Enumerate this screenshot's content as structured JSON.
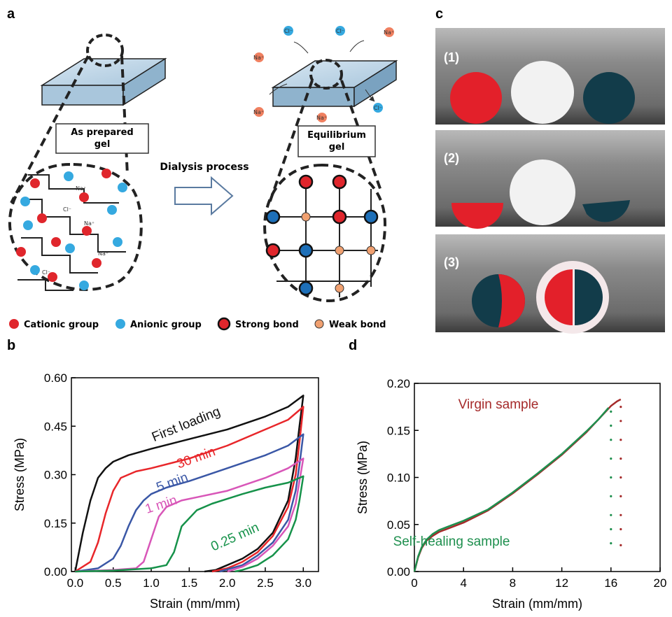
{
  "panel_a": {
    "label": "a",
    "gel_before": [
      "As prepared",
      "gel"
    ],
    "gel_after": [
      "Equilibrium",
      "gel"
    ],
    "process": "Dialysis process",
    "ions": [
      "Na⁺",
      "Cl⁻"
    ],
    "legend": [
      "Cationic group",
      "Anionic group",
      "Strong bond",
      "Weak bond"
    ]
  },
  "panel_c": {
    "label": "c",
    "photos": [
      "(1)",
      "(2)",
      "(3)"
    ]
  },
  "chart_data": [
    {
      "type": "line",
      "label": "b",
      "x_label": "Strain (mm/mm)",
      "y_label": "Stress (MPa)",
      "xlim": [
        -0.05,
        3.2
      ],
      "ylim": [
        0,
        0.6
      ],
      "xticks": [
        {
          "value": 0,
          "label": "0.0"
        },
        {
          "value": 0.5,
          "label": "0.5"
        },
        {
          "value": 1,
          "label": "1.0"
        },
        {
          "value": 1.5,
          "label": "1.5"
        },
        {
          "value": 2,
          "label": "2.0"
        },
        {
          "value": 2.5,
          "label": "2.5"
        },
        {
          "value": 3,
          "label": "3.0"
        }
      ],
      "yticks": [
        {
          "value": 0,
          "label": "0.00"
        },
        {
          "value": 0.15,
          "label": "0.15"
        },
        {
          "value": 0.3,
          "label": "0.30"
        },
        {
          "value": 0.45,
          "label": "0.45"
        },
        {
          "value": 0.6,
          "label": "0.60"
        }
      ],
      "series": [
        {
          "name": "First loading",
          "color": "#111111",
          "x": [
            0,
            0.1,
            0.2,
            0.3,
            0.4,
            0.5,
            0.7,
            1.0,
            1.5,
            2.0,
            2.5,
            2.8,
            3.0,
            2.95,
            2.9,
            2.8,
            2.6,
            2.4,
            2.2,
            2.0,
            1.85,
            1.7
          ],
          "values": [
            0,
            0.12,
            0.22,
            0.29,
            0.32,
            0.34,
            0.36,
            0.38,
            0.41,
            0.44,
            0.48,
            0.51,
            0.545,
            0.45,
            0.35,
            0.22,
            0.12,
            0.07,
            0.04,
            0.02,
            0.005,
            0
          ]
        },
        {
          "name": "30 min",
          "color": "#e8262a",
          "x": [
            0,
            0.2,
            0.3,
            0.4,
            0.5,
            0.6,
            0.8,
            1.0,
            1.5,
            2.0,
            2.5,
            2.8,
            3.0,
            2.95,
            2.9,
            2.8,
            2.6,
            2.4,
            2.2,
            2.0,
            1.8
          ],
          "values": [
            0,
            0.03,
            0.09,
            0.18,
            0.25,
            0.29,
            0.31,
            0.32,
            0.35,
            0.39,
            0.44,
            0.47,
            0.51,
            0.4,
            0.3,
            0.2,
            0.11,
            0.06,
            0.03,
            0.01,
            0
          ]
        },
        {
          "name": "5 min",
          "color": "#3a57a6",
          "x": [
            0,
            0.3,
            0.5,
            0.6,
            0.7,
            0.8,
            0.9,
            1.0,
            1.2,
            1.5,
            2.0,
            2.5,
            2.8,
            3.0,
            2.95,
            2.9,
            2.8,
            2.6,
            2.4,
            2.2,
            1.9
          ],
          "values": [
            0,
            0.01,
            0.04,
            0.08,
            0.14,
            0.19,
            0.22,
            0.24,
            0.26,
            0.28,
            0.32,
            0.36,
            0.39,
            0.425,
            0.33,
            0.25,
            0.16,
            0.09,
            0.05,
            0.02,
            0
          ]
        },
        {
          "name": "1 min",
          "color": "#d856b8",
          "x": [
            0,
            0.5,
            0.8,
            0.9,
            1.0,
            1.1,
            1.2,
            1.4,
            1.6,
            2.0,
            2.5,
            2.8,
            3.0,
            2.95,
            2.9,
            2.8,
            2.6,
            2.4,
            2.2,
            2.0
          ],
          "values": [
            0,
            0.005,
            0.01,
            0.03,
            0.1,
            0.17,
            0.2,
            0.22,
            0.23,
            0.25,
            0.29,
            0.32,
            0.35,
            0.28,
            0.21,
            0.14,
            0.08,
            0.04,
            0.015,
            0
          ]
        },
        {
          "name": "0.25 min",
          "color": "#16924a",
          "x": [
            0,
            0.5,
            1.0,
            1.2,
            1.3,
            1.4,
            1.6,
            1.8,
            2.0,
            2.2,
            2.5,
            2.8,
            3.0,
            2.95,
            2.9,
            2.8,
            2.6,
            2.4,
            2.2,
            2.1
          ],
          "values": [
            0,
            0.003,
            0.01,
            0.02,
            0.06,
            0.14,
            0.19,
            0.21,
            0.225,
            0.24,
            0.26,
            0.275,
            0.295,
            0.22,
            0.16,
            0.1,
            0.05,
            0.02,
            0.005,
            0
          ]
        }
      ]
    },
    {
      "type": "line",
      "label": "d",
      "x_label": "Strain (mm/mm)",
      "y_label": "Stress (MPa)",
      "xlim": [
        0,
        20
      ],
      "ylim": [
        0,
        0.2
      ],
      "xticks": [
        0,
        4,
        8,
        12,
        16,
        20
      ],
      "yticks": [
        {
          "value": 0,
          "label": "0.00"
        },
        {
          "value": 0.05,
          "label": "0.05"
        },
        {
          "value": 0.1,
          "label": "0.10"
        },
        {
          "value": 0.15,
          "label": "0.15"
        },
        {
          "value": 0.2,
          "label": "0.20"
        }
      ],
      "series": [
        {
          "name": "Virgin sample",
          "color": "#a52a2a",
          "x": [
            0,
            0.3,
            0.6,
            1,
            1.5,
            2,
            3,
            4,
            6,
            8,
            10,
            12,
            14,
            15,
            16,
            16.5,
            16.8
          ],
          "values": [
            0,
            0.015,
            0.025,
            0.033,
            0.038,
            0.042,
            0.047,
            0.052,
            0.065,
            0.083,
            0.103,
            0.124,
            0.148,
            0.162,
            0.176,
            0.181,
            0.183
          ],
          "break_x": 16.8,
          "break_values": [
            0.175,
            0.16,
            0.14,
            0.12,
            0.1,
            0.08,
            0.06,
            0.045,
            0.028
          ]
        },
        {
          "name": "Self-healing sample",
          "color": "#1e8f4e",
          "x": [
            0,
            0.3,
            0.6,
            1,
            1.5,
            2,
            3,
            4,
            6,
            8,
            10,
            12,
            14,
            15,
            15.8
          ],
          "values": [
            0,
            0.016,
            0.026,
            0.034,
            0.04,
            0.044,
            0.049,
            0.054,
            0.066,
            0.084,
            0.104,
            0.125,
            0.149,
            0.162,
            0.174
          ],
          "break_x": 16,
          "break_values": [
            0.17,
            0.155,
            0.14,
            0.12,
            0.1,
            0.08,
            0.06,
            0.045,
            0.03
          ]
        }
      ]
    }
  ]
}
